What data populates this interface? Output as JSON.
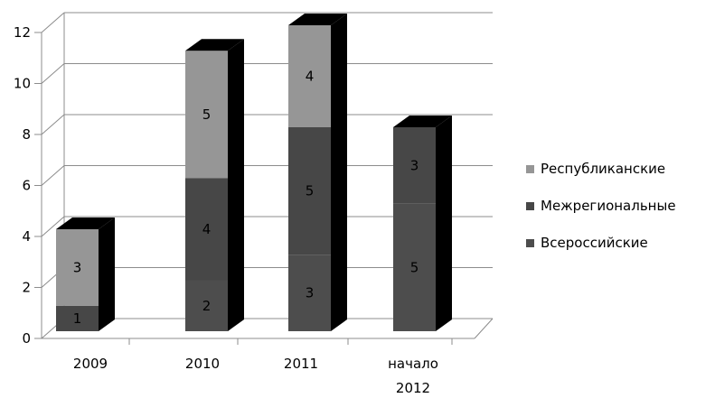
{
  "chart_data": {
    "type": "bar",
    "stacked": true,
    "three_d": true,
    "categories": [
      "2009",
      "2010",
      "2011",
      "начало 2012"
    ],
    "series": [
      {
        "name": "Всероссийские",
        "values": [
          0,
          2,
          3,
          5
        ],
        "color": "#4d4d4d",
        "top_color": "#616161"
      },
      {
        "name": "Межрегиональные",
        "values": [
          1,
          4,
          5,
          3
        ],
        "color": "#474747",
        "top_color": "#5a5a5a"
      },
      {
        "name": "Республиканские",
        "values": [
          3,
          5,
          4,
          0
        ],
        "color": "#969696",
        "top_color": "#b0b0b0"
      }
    ],
    "legend_order": [
      "Республиканские",
      "Межрегиональные",
      "Всероссийские"
    ],
    "y_ticks": [
      "0",
      "2",
      "4",
      "6",
      "8",
      "10",
      "12"
    ],
    "ylim": [
      0,
      12
    ],
    "grid": true,
    "legend_position": "right"
  }
}
